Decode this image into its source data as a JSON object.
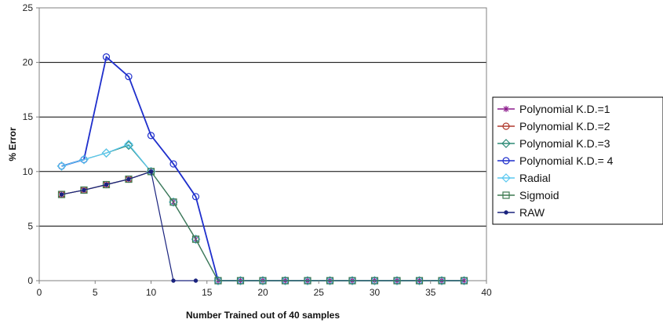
{
  "chart_data": {
    "type": "line",
    "title": "",
    "xlabel": "Number Trained out of 40 samples",
    "ylabel": "% Error",
    "xlim": [
      0,
      40
    ],
    "ylim": [
      0,
      25
    ],
    "xticks": [
      0,
      5,
      10,
      15,
      20,
      25,
      30,
      35,
      40
    ],
    "yticks": [
      0,
      5,
      10,
      15,
      20,
      25
    ],
    "grid": "horizontal",
    "legend_position": "right",
    "series": [
      {
        "name": "Polynomial K.D.=1",
        "color": "#8B1A8B",
        "marker": "star",
        "x": [
          2,
          4,
          6,
          8,
          10,
          12,
          14,
          16,
          18,
          20,
          22,
          24,
          26,
          28,
          30,
          32,
          34,
          36,
          38
        ],
        "y": [
          7.9,
          8.3,
          8.8,
          9.3,
          10.0,
          7.2,
          3.8,
          0,
          0,
          0,
          0,
          0,
          0,
          0,
          0,
          0,
          0,
          0,
          0
        ]
      },
      {
        "name": "Polynomial K.D.=2",
        "color": "#B03A2E",
        "marker": "circle",
        "x": [
          2,
          4,
          6,
          8,
          10,
          12,
          14,
          16,
          18,
          20,
          22,
          24,
          26,
          28,
          30,
          32,
          34,
          36,
          38
        ],
        "y": [
          7.9,
          8.3,
          8.8,
          9.3,
          10.0,
          7.2,
          3.8,
          0,
          0,
          0,
          0,
          0,
          0,
          0,
          0,
          0,
          0,
          0,
          0
        ]
      },
      {
        "name": "Polynomial K.D.=3",
        "color": "#2E8B77",
        "marker": "diamond",
        "x": [
          2,
          4,
          6,
          8,
          10,
          12,
          14,
          16,
          18,
          20,
          22,
          24,
          26,
          28,
          30,
          32,
          34,
          36,
          38
        ],
        "y": [
          10.5,
          11.1,
          11.7,
          12.4,
          10.0,
          7.2,
          3.8,
          0,
          0,
          0,
          0,
          0,
          0,
          0,
          0,
          0,
          0,
          0,
          0
        ]
      },
      {
        "name": "Polynomial K.D.= 4",
        "color": "#1F2FCC",
        "marker": "circle",
        "x": [
          2,
          4,
          6,
          8,
          10,
          12,
          14,
          16,
          18,
          20,
          22,
          24,
          26,
          28,
          30,
          32,
          34,
          36,
          38
        ],
        "y": [
          10.5,
          11.1,
          20.5,
          18.7,
          13.3,
          10.7,
          7.7,
          0,
          0,
          0,
          0,
          0,
          0,
          0,
          0,
          0,
          0,
          0,
          0
        ]
      },
      {
        "name": "Radial",
        "color": "#5BC8F0",
        "marker": "diamond",
        "x": [
          2,
          4,
          6,
          8,
          10,
          12,
          14,
          16,
          18,
          20,
          22,
          24,
          26,
          28,
          30,
          32,
          34,
          36,
          38
        ],
        "y": [
          10.5,
          11.1,
          11.7,
          12.5,
          10.0,
          7.2,
          3.8,
          0,
          0,
          0,
          0,
          0,
          0,
          0,
          0,
          0,
          0,
          0,
          0
        ]
      },
      {
        "name": "Sigmoid",
        "color": "#3E7A50",
        "marker": "square",
        "x": [
          2,
          4,
          6,
          8,
          10,
          12,
          14,
          16,
          18,
          20,
          22,
          24,
          26,
          28,
          30,
          32,
          34,
          36,
          38
        ],
        "y": [
          7.9,
          8.3,
          8.8,
          9.3,
          10.0,
          7.2,
          3.8,
          0,
          0,
          0,
          0,
          0,
          0,
          0,
          0,
          0,
          0,
          0,
          0
        ]
      },
      {
        "name": "RAW",
        "color": "#1A237E",
        "marker": "dot",
        "x": [
          2,
          4,
          6,
          8,
          10,
          12,
          14
        ],
        "y": [
          7.9,
          8.3,
          8.8,
          9.3,
          10.0,
          0,
          0
        ]
      }
    ]
  }
}
